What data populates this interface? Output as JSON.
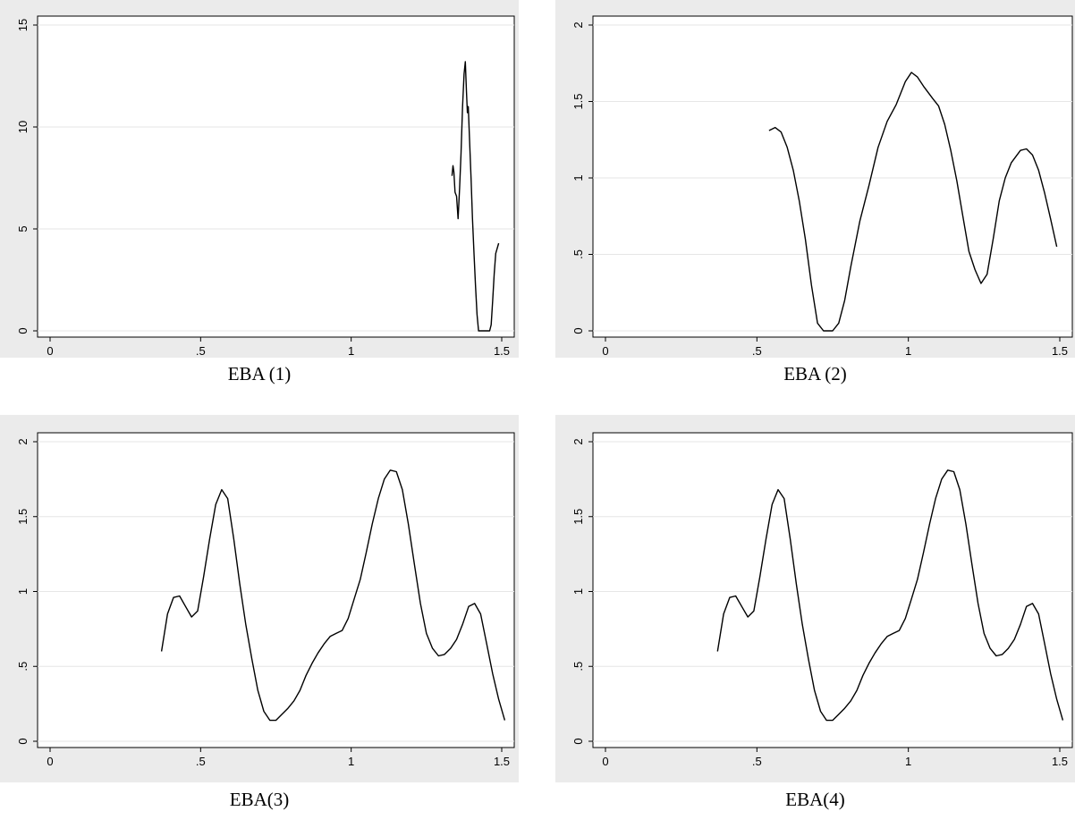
{
  "chart_data": [
    {
      "type": "line",
      "title": "EBA (1)",
      "xlim": [
        0,
        1.5
      ],
      "ylim": [
        0,
        15
      ],
      "x_ticks": [
        "0",
        ".5",
        "1",
        "1.5"
      ],
      "y_ticks": [
        "0",
        "5",
        "10",
        "15"
      ],
      "grid": true,
      "series": [
        {
          "x": [
            1.335,
            1.338,
            1.341,
            1.345,
            1.35,
            1.355,
            1.36,
            1.365,
            1.37,
            1.375,
            1.379,
            1.383,
            1.386,
            1.389,
            1.393,
            1.398,
            1.403,
            1.408,
            1.413,
            1.418,
            1.423,
            1.427,
            1.43,
            1.44,
            1.45,
            1.46,
            1.465,
            1.47,
            1.475,
            1.48,
            1.49
          ],
          "y": [
            7.6,
            8.1,
            7.8,
            6.8,
            6.6,
            5.5,
            7.0,
            8.7,
            11.0,
            12.6,
            13.2,
            11.7,
            10.7,
            11.0,
            9.4,
            7.5,
            5.5,
            3.8,
            2.2,
            0.8,
            0,
            0,
            0,
            0,
            0,
            0,
            0.3,
            1.5,
            2.8,
            3.8,
            4.3
          ]
        }
      ]
    },
    {
      "type": "line",
      "title": "EBA (2)",
      "xlim": [
        0,
        1.5
      ],
      "ylim": [
        0,
        2
      ],
      "x_ticks": [
        "0",
        ".5",
        "1",
        "1.5"
      ],
      "y_ticks": [
        "0",
        ".5",
        "1",
        "1.5",
        "2"
      ],
      "grid": true,
      "series": [
        {
          "x": [
            0.54,
            0.56,
            0.58,
            0.6,
            0.62,
            0.64,
            0.66,
            0.68,
            0.7,
            0.72,
            0.75,
            0.77,
            0.79,
            0.81,
            0.84,
            0.87,
            0.9,
            0.93,
            0.96,
            0.99,
            1.01,
            1.03,
            1.05,
            1.08,
            1.1,
            1.12,
            1.14,
            1.16,
            1.18,
            1.2,
            1.22,
            1.24,
            1.26,
            1.28,
            1.3,
            1.32,
            1.34,
            1.37,
            1.39,
            1.41,
            1.43,
            1.45,
            1.47,
            1.49
          ],
          "y": [
            1.31,
            1.33,
            1.3,
            1.2,
            1.05,
            0.85,
            0.6,
            0.3,
            0.05,
            0,
            0,
            0.05,
            0.2,
            0.42,
            0.72,
            0.95,
            1.2,
            1.37,
            1.48,
            1.63,
            1.69,
            1.66,
            1.6,
            1.52,
            1.47,
            1.35,
            1.18,
            0.98,
            0.75,
            0.52,
            0.4,
            0.31,
            0.37,
            0.6,
            0.85,
            1.0,
            1.1,
            1.18,
            1.19,
            1.15,
            1.05,
            0.9,
            0.73,
            0.55
          ]
        }
      ]
    },
    {
      "type": "line",
      "title": "EBA(3)",
      "xlim": [
        0,
        1.5
      ],
      "ylim": [
        0,
        2
      ],
      "x_ticks": [
        "0",
        ".5",
        "1",
        "1.5"
      ],
      "y_ticks": [
        "0",
        ".5",
        "1",
        "1.5",
        "2"
      ],
      "grid": true,
      "series": [
        {
          "x": [
            0.37,
            0.39,
            0.41,
            0.43,
            0.45,
            0.47,
            0.49,
            0.51,
            0.53,
            0.55,
            0.57,
            0.59,
            0.61,
            0.63,
            0.65,
            0.67,
            0.69,
            0.71,
            0.73,
            0.75,
            0.77,
            0.79,
            0.81,
            0.83,
            0.85,
            0.87,
            0.89,
            0.91,
            0.93,
            0.95,
            0.97,
            0.99,
            1.01,
            1.03,
            1.05,
            1.07,
            1.09,
            1.11,
            1.13,
            1.15,
            1.17,
            1.19,
            1.21,
            1.23,
            1.25,
            1.27,
            1.29,
            1.31,
            1.33,
            1.35,
            1.37,
            1.39,
            1.41,
            1.43,
            1.45,
            1.47,
            1.49,
            1.51
          ],
          "y": [
            0.6,
            0.85,
            0.96,
            0.97,
            0.9,
            0.83,
            0.87,
            1.1,
            1.35,
            1.58,
            1.68,
            1.62,
            1.35,
            1.05,
            0.78,
            0.55,
            0.34,
            0.2,
            0.14,
            0.14,
            0.18,
            0.22,
            0.27,
            0.34,
            0.44,
            0.52,
            0.59,
            0.65,
            0.7,
            0.72,
            0.74,
            0.82,
            0.95,
            1.08,
            1.26,
            1.45,
            1.62,
            1.75,
            1.81,
            1.8,
            1.68,
            1.45,
            1.18,
            0.92,
            0.72,
            0.62,
            0.57,
            0.58,
            0.62,
            0.68,
            0.78,
            0.9,
            0.92,
            0.85,
            0.65,
            0.45,
            0.28,
            0.14
          ]
        }
      ]
    },
    {
      "type": "line",
      "title": "EBA(4)",
      "xlim": [
        0,
        1.5
      ],
      "ylim": [
        0,
        2
      ],
      "x_ticks": [
        "0",
        ".5",
        "1",
        "1.5"
      ],
      "y_ticks": [
        "0",
        ".5",
        "1",
        "1.5",
        "2"
      ],
      "grid": true,
      "series": [
        {
          "x": [
            0.37,
            0.39,
            0.41,
            0.43,
            0.45,
            0.47,
            0.49,
            0.51,
            0.53,
            0.55,
            0.57,
            0.59,
            0.61,
            0.63,
            0.65,
            0.67,
            0.69,
            0.71,
            0.73,
            0.75,
            0.77,
            0.79,
            0.81,
            0.83,
            0.85,
            0.87,
            0.89,
            0.91,
            0.93,
            0.95,
            0.97,
            0.99,
            1.01,
            1.03,
            1.05,
            1.07,
            1.09,
            1.11,
            1.13,
            1.15,
            1.17,
            1.19,
            1.21,
            1.23,
            1.25,
            1.27,
            1.29,
            1.31,
            1.33,
            1.35,
            1.37,
            1.39,
            1.41,
            1.43,
            1.45,
            1.47,
            1.49,
            1.51
          ],
          "y": [
            0.6,
            0.85,
            0.96,
            0.97,
            0.9,
            0.83,
            0.87,
            1.1,
            1.35,
            1.58,
            1.68,
            1.62,
            1.35,
            1.05,
            0.78,
            0.55,
            0.34,
            0.2,
            0.14,
            0.14,
            0.18,
            0.22,
            0.27,
            0.34,
            0.44,
            0.52,
            0.59,
            0.65,
            0.7,
            0.72,
            0.74,
            0.82,
            0.95,
            1.08,
            1.26,
            1.45,
            1.62,
            1.75,
            1.81,
            1.8,
            1.68,
            1.45,
            1.18,
            0.92,
            0.72,
            0.62,
            0.57,
            0.58,
            0.62,
            0.68,
            0.78,
            0.9,
            0.92,
            0.85,
            0.65,
            0.45,
            0.28,
            0.14
          ]
        }
      ]
    }
  ],
  "colors": {
    "outer_background": "#ebebeb",
    "plot_background": "#ffffff",
    "grid": "#e6e6e6",
    "line": "#000000"
  }
}
